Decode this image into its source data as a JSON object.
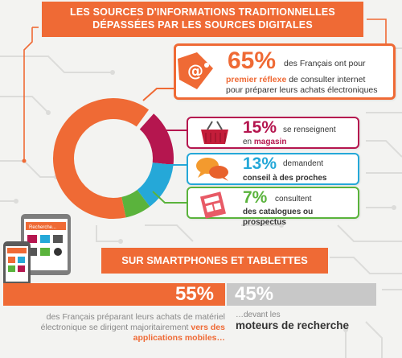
{
  "title": {
    "line1": "LES SOURCES D'INFORMATIONS TRADITIONNELLES",
    "line2": "DÉPASSÉES PAR LES SOURCES DIGITALES"
  },
  "colors": {
    "orange": "#ef6a35",
    "magenta": "#b5164f",
    "blue": "#25a8d8",
    "green": "#5ab33c",
    "grey": "#c8c8c8"
  },
  "donut_shares": [
    {
      "name": "internet",
      "value": 65,
      "color": "#ef6a35"
    },
    {
      "name": "magasin",
      "value": 15,
      "color": "#b5164f"
    },
    {
      "name": "proches",
      "value": 13,
      "color": "#25a8d8"
    },
    {
      "name": "catalogues",
      "value": 7,
      "color": "#5ab33c"
    }
  ],
  "main_stat": {
    "pct": "65%",
    "text_a": "des Français ont pour",
    "text_b": "premier réflexe",
    "text_c": "de consulter internet",
    "text_d": "pour préparer leurs achats électroniques",
    "icon_label": "@"
  },
  "stats": [
    {
      "pct": "15%",
      "text": "se renseignent",
      "bold": "en magasin",
      "icon": "basket-icon"
    },
    {
      "pct": "13%",
      "text": "demandent",
      "bold": "conseil à des proches",
      "icon": "speech-bubbles-icon"
    },
    {
      "pct": "7%",
      "text": "consultent",
      "bold": "des catalogues ou prospectus",
      "icon": "catalog-icon"
    }
  ],
  "device_screen_label": "Recherche...",
  "smartphones": {
    "banner": "SUR SMARTPHONES ET TABLETTES",
    "left_pct": "55%",
    "right_pct": "45%",
    "left_text_a": "des Français préparant leurs achats de matériel électronique se dirigent majoritairement",
    "left_text_b": "vers des applications mobiles…",
    "right_text_a": "…devant les",
    "right_text_b": "moteurs de recherche"
  }
}
